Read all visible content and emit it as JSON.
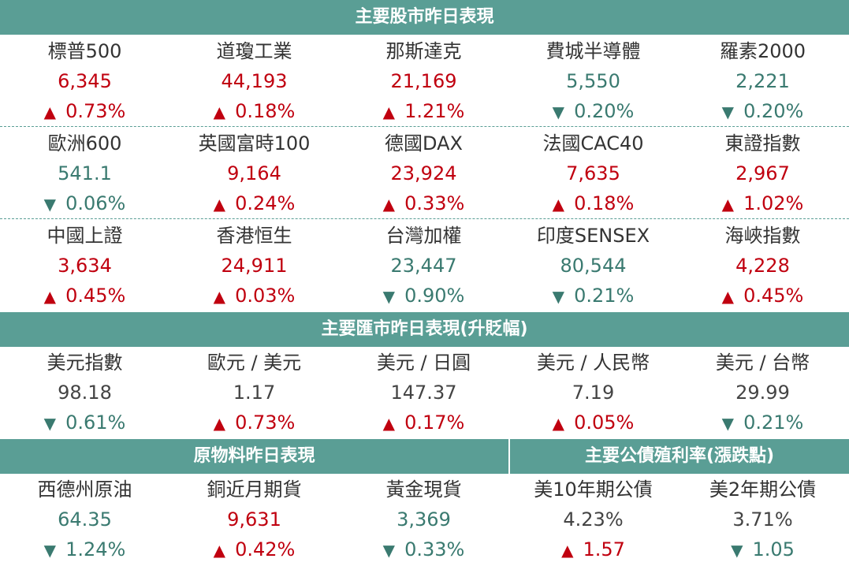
{
  "headers": {
    "stocks": "主要股市昨日表現",
    "fx": "主要匯市昨日表現(升貶幅)",
    "commodities": "原物料昨日表現",
    "bonds": "主要公債殖利率(漲跌點)"
  },
  "stocks": [
    [
      {
        "name": "標普500",
        "value": "6,345",
        "change": "0.73%",
        "dir": "up"
      },
      {
        "name": "道瓊工業",
        "value": "44,193",
        "change": "0.18%",
        "dir": "up"
      },
      {
        "name": "那斯達克",
        "value": "21,169",
        "change": "1.21%",
        "dir": "up"
      },
      {
        "name": "費城半導體",
        "value": "5,550",
        "change": "0.20%",
        "dir": "down"
      },
      {
        "name": "羅素2000",
        "value": "2,221",
        "change": "0.20%",
        "dir": "down"
      }
    ],
    [
      {
        "name": "歐洲600",
        "value": "541.1",
        "change": "0.06%",
        "dir": "down"
      },
      {
        "name": "英國富時100",
        "value": "9,164",
        "change": "0.24%",
        "dir": "up"
      },
      {
        "name": "德國DAX",
        "value": "23,924",
        "change": "0.33%",
        "dir": "up"
      },
      {
        "name": "法國CAC40",
        "value": "7,635",
        "change": "0.18%",
        "dir": "up"
      },
      {
        "name": "東證指數",
        "value": "2,967",
        "change": "1.02%",
        "dir": "up"
      }
    ],
    [
      {
        "name": "中國上證",
        "value": "3,634",
        "change": "0.45%",
        "dir": "up"
      },
      {
        "name": "香港恒生",
        "value": "24,911",
        "change": "0.03%",
        "dir": "up"
      },
      {
        "name": "台灣加權",
        "value": "23,447",
        "change": "0.90%",
        "dir": "down"
      },
      {
        "name": "印度SENSEX",
        "value": "80,544",
        "change": "0.21%",
        "dir": "down"
      },
      {
        "name": "海峽指數",
        "value": "4,228",
        "change": "0.45%",
        "dir": "up"
      }
    ]
  ],
  "fx": [
    {
      "name": "美元指數",
      "value": "98.18",
      "change": "0.61%",
      "dir": "down"
    },
    {
      "name": "歐元 / 美元",
      "value": "1.17",
      "change": "0.73%",
      "dir": "up"
    },
    {
      "name": "美元 / 日圓",
      "value": "147.37",
      "change": "0.17%",
      "dir": "up"
    },
    {
      "name": "美元 / 人民幣",
      "value": "7.19",
      "change": "0.05%",
      "dir": "up"
    },
    {
      "name": "美元 / 台幣",
      "value": "29.99",
      "change": "0.21%",
      "dir": "down"
    }
  ],
  "commodities": [
    {
      "name": "西德州原油",
      "value": "64.35",
      "change": "1.24%",
      "dir": "down"
    },
    {
      "name": "銅近月期貨",
      "value": "9,631",
      "change": "0.42%",
      "dir": "up"
    },
    {
      "name": "黃金現貨",
      "value": "3,369",
      "change": "0.33%",
      "dir": "down"
    }
  ],
  "bonds": [
    {
      "name": "美10年期公債",
      "value": "4.23%",
      "change": "1.57",
      "dir": "up"
    },
    {
      "name": "美2年期公債",
      "value": "3.71%",
      "change": "1.05",
      "dir": "down"
    }
  ],
  "colors": {
    "header_bg": "#5a9e95",
    "up": "#c0000f",
    "down": "#3a7a70",
    "neutral": "#444444"
  },
  "icons": {
    "up": "triangle-up-icon",
    "down": "triangle-down-icon"
  }
}
